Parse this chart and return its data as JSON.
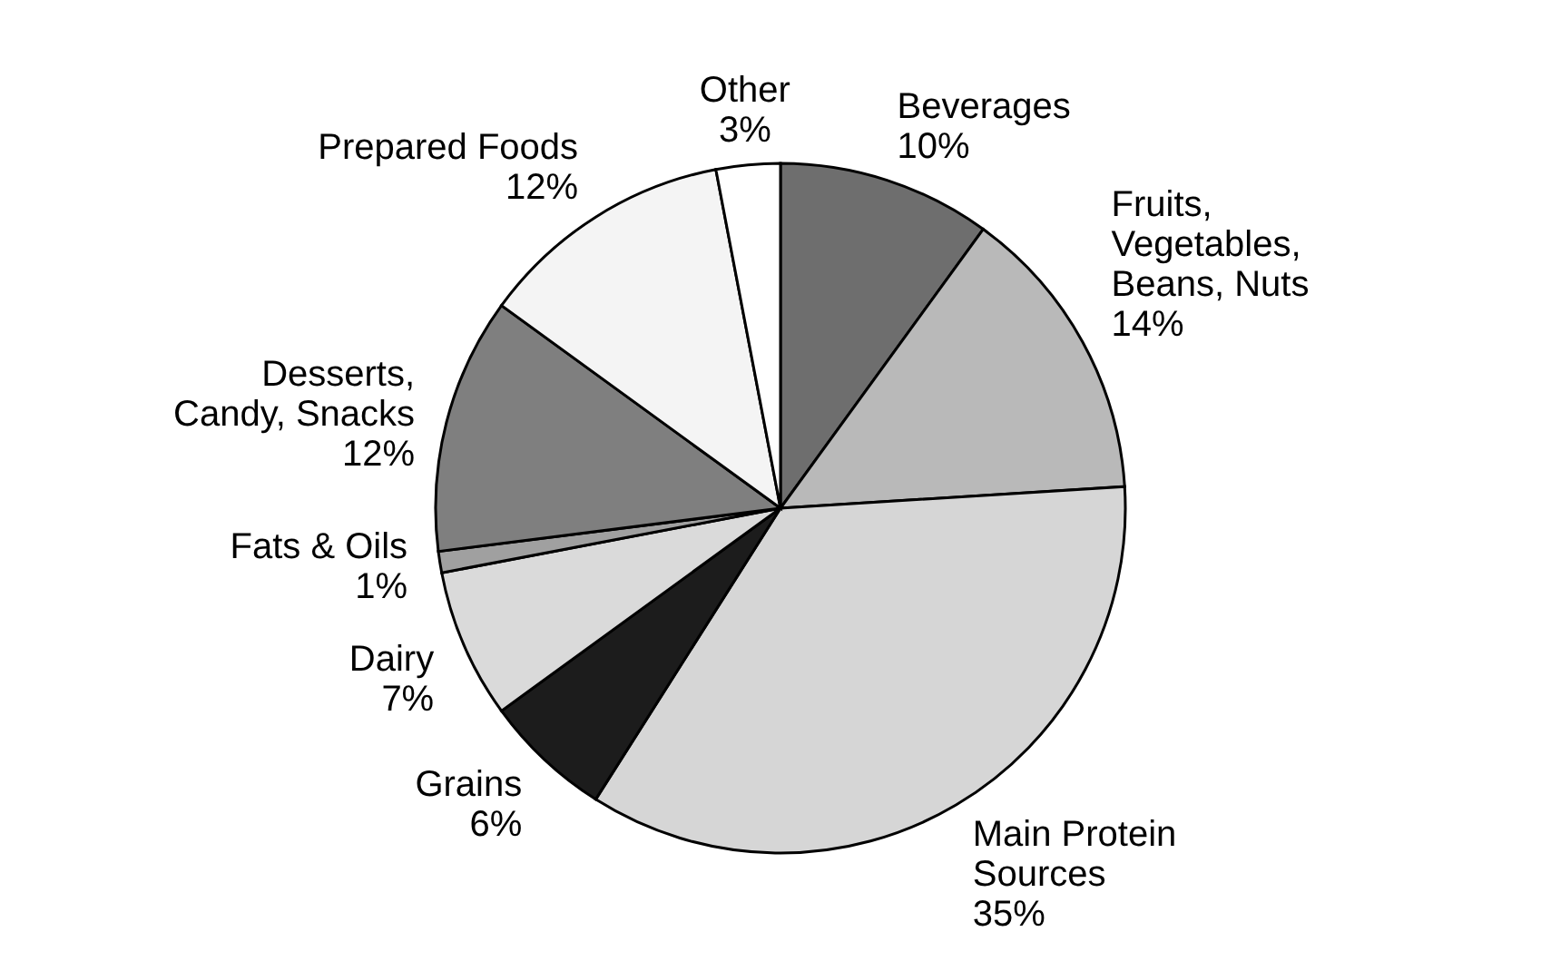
{
  "chart_data": {
    "type": "pie",
    "categories": [
      "Beverages",
      "Fruits, Vegetables, Beans, Nuts",
      "Main Protein Sources",
      "Grains",
      "Dairy",
      "Fats & Oils",
      "Desserts, Candy, Snacks",
      "Prepared Foods",
      "Other"
    ],
    "values": [
      10,
      14,
      35,
      6,
      7,
      1,
      12,
      12,
      3
    ],
    "value_labels": [
      "10%",
      "14%",
      "35%",
      "6%",
      "7%",
      "1%",
      "12%",
      "12%",
      "3%"
    ],
    "colors": [
      "#6e6e6e",
      "#b9b9b9",
      "#d6d6d6",
      "#1c1c1c",
      "#dadada",
      "#a0a0a0",
      "#7f7f7f",
      "#f4f4f4",
      "#ffffff"
    ]
  }
}
